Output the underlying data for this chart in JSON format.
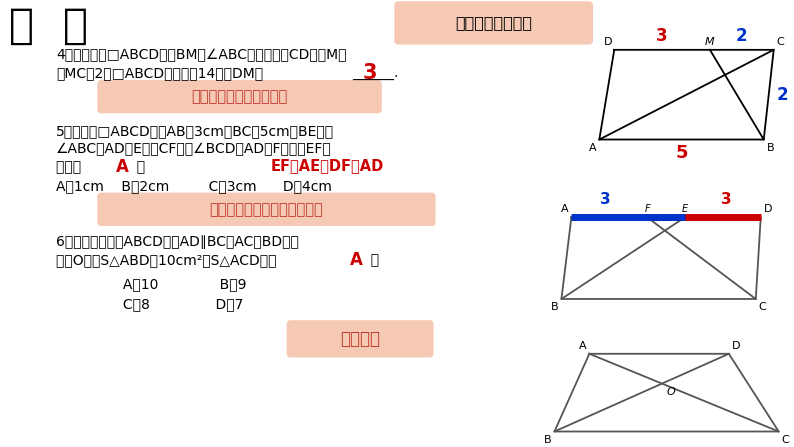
{
  "bg_color": "#ffffff",
  "title": "作  业",
  "title_color": "#000000",
  "title_fontsize": 30,
  "subtitle_box_text": "角平分线＋平行线",
  "subtitle_box_color": "#f5c9b3",
  "hint1_text": "邻边的和等于周长的一半",
  "hint1_color": "#f5c9b3",
  "hint2_text": "两条平行线间的距离处处相等",
  "hint2_color": "#f5c9b3",
  "hint3_text": "同底等高",
  "hint3_color": "#f5c9b3",
  "q4_line1": "4．如图，在□ABCD中，BM是∠ABC的平分线交CD于点M，",
  "q4_line2": "且MC＝2，□ABCD的周长是14，则DM＝",
  "q4_answer": "3",
  "q5_line1": "5．如图，□ABCD中，AB＝3cm，BC＝5cm，BE平分",
  "q5_line2": "∠ABC交AD于E点，CF平分∠BCD交AD于F点，则EF的",
  "q5_line3a": "长为（  ",
  "q5_line3b": "A",
  "q5_line3c": "  ）",
  "q5_formula": "EF＝AE＋DF－AD",
  "q5_opts": "A．1cm    B．2cm         C．3cm      D．4cm",
  "q6_line1": "6．如图，四边形ABCD中，AD∥BC，AC与BD相交",
  "q6_line2a": "于点O，若S",
  "q6_line2b": "△ABD",
  "q6_line2c": "＝10cm²，S",
  "q6_line2d": "△ACD",
  "q6_line2e": "为（  ",
  "q6_line2f": "A",
  "q6_line2g": "  ）",
  "q6_opt1": "     A．10              B．9",
  "q6_opt2": "     C．8               D．7"
}
